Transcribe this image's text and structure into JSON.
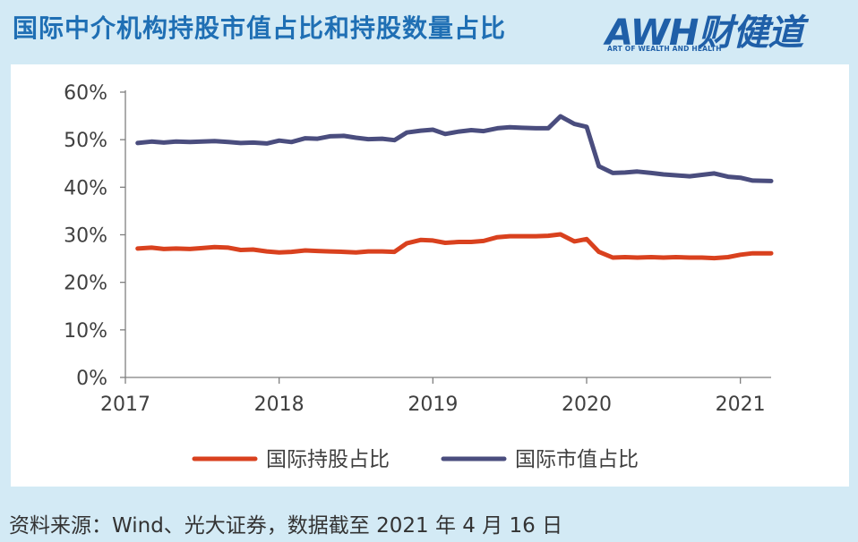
{
  "title": "国际中介机构持股市值占比和持股数量占比",
  "logo": {
    "text": "AWH财健道",
    "subtitle": "ART OF WEALTH AND HEALTH"
  },
  "source": "资料来源：Wind、光大证券，数据截至 2021 年 4 月 16 日",
  "chart_data": {
    "type": "line",
    "xlim": [
      2017,
      2021.2
    ],
    "ylim": [
      0,
      60
    ],
    "x_ticks": [
      2017,
      2018,
      2019,
      2020,
      2021
    ],
    "x_tick_labels": [
      "2017",
      "2018",
      "2019",
      "2020",
      "2021"
    ],
    "y_ticks": [
      0,
      10,
      20,
      30,
      40,
      50,
      60
    ],
    "y_tick_labels": [
      "0%",
      "10%",
      "20%",
      "30%",
      "40%",
      "50%",
      "60%"
    ],
    "legend_position": "bottom",
    "grid": false,
    "series": [
      {
        "name": "国际持股占比",
        "color": "#d9411e",
        "points": [
          [
            2017.08,
            27.1
          ],
          [
            2017.17,
            27.3
          ],
          [
            2017.25,
            27.0
          ],
          [
            2017.33,
            27.1
          ],
          [
            2017.42,
            27.0
          ],
          [
            2017.5,
            27.2
          ],
          [
            2017.58,
            27.4
          ],
          [
            2017.67,
            27.3
          ],
          [
            2017.75,
            26.8
          ],
          [
            2017.83,
            26.9
          ],
          [
            2017.92,
            26.5
          ],
          [
            2018.0,
            26.3
          ],
          [
            2018.08,
            26.4
          ],
          [
            2018.17,
            26.7
          ],
          [
            2018.25,
            26.6
          ],
          [
            2018.33,
            26.5
          ],
          [
            2018.42,
            26.4
          ],
          [
            2018.5,
            26.3
          ],
          [
            2018.58,
            26.5
          ],
          [
            2018.67,
            26.5
          ],
          [
            2018.75,
            26.4
          ],
          [
            2018.83,
            28.2
          ],
          [
            2018.92,
            28.9
          ],
          [
            2019.0,
            28.8
          ],
          [
            2019.08,
            28.3
          ],
          [
            2019.17,
            28.5
          ],
          [
            2019.25,
            28.5
          ],
          [
            2019.33,
            28.7
          ],
          [
            2019.42,
            29.5
          ],
          [
            2019.5,
            29.7
          ],
          [
            2019.58,
            29.7
          ],
          [
            2019.67,
            29.7
          ],
          [
            2019.75,
            29.8
          ],
          [
            2019.83,
            30.1
          ],
          [
            2019.92,
            28.6
          ],
          [
            2020.0,
            29.1
          ],
          [
            2020.08,
            26.4
          ],
          [
            2020.17,
            25.2
          ],
          [
            2020.25,
            25.3
          ],
          [
            2020.33,
            25.2
          ],
          [
            2020.42,
            25.3
          ],
          [
            2020.5,
            25.2
          ],
          [
            2020.58,
            25.3
          ],
          [
            2020.67,
            25.2
          ],
          [
            2020.75,
            25.2
          ],
          [
            2020.83,
            25.1
          ],
          [
            2020.92,
            25.3
          ],
          [
            2021.0,
            25.8
          ],
          [
            2021.08,
            26.1
          ],
          [
            2021.2,
            26.1
          ]
        ]
      },
      {
        "name": "国际市值占比",
        "color": "#4a4d7e",
        "points": [
          [
            2017.08,
            49.3
          ],
          [
            2017.17,
            49.6
          ],
          [
            2017.25,
            49.4
          ],
          [
            2017.33,
            49.6
          ],
          [
            2017.42,
            49.5
          ],
          [
            2017.5,
            49.6
          ],
          [
            2017.58,
            49.7
          ],
          [
            2017.67,
            49.5
          ],
          [
            2017.75,
            49.3
          ],
          [
            2017.83,
            49.4
          ],
          [
            2017.92,
            49.2
          ],
          [
            2018.0,
            49.8
          ],
          [
            2018.08,
            49.5
          ],
          [
            2018.17,
            50.3
          ],
          [
            2018.25,
            50.2
          ],
          [
            2018.33,
            50.7
          ],
          [
            2018.42,
            50.8
          ],
          [
            2018.5,
            50.4
          ],
          [
            2018.58,
            50.1
          ],
          [
            2018.67,
            50.2
          ],
          [
            2018.75,
            49.9
          ],
          [
            2018.83,
            51.5
          ],
          [
            2018.92,
            51.9
          ],
          [
            2019.0,
            52.1
          ],
          [
            2019.08,
            51.2
          ],
          [
            2019.17,
            51.7
          ],
          [
            2019.25,
            52.0
          ],
          [
            2019.33,
            51.8
          ],
          [
            2019.42,
            52.4
          ],
          [
            2019.5,
            52.6
          ],
          [
            2019.58,
            52.5
          ],
          [
            2019.67,
            52.4
          ],
          [
            2019.75,
            52.4
          ],
          [
            2019.83,
            54.9
          ],
          [
            2019.92,
            53.3
          ],
          [
            2020.0,
            52.7
          ],
          [
            2020.08,
            44.4
          ],
          [
            2020.17,
            43.0
          ],
          [
            2020.25,
            43.1
          ],
          [
            2020.33,
            43.3
          ],
          [
            2020.42,
            43.0
          ],
          [
            2020.5,
            42.7
          ],
          [
            2020.58,
            42.5
          ],
          [
            2020.67,
            42.3
          ],
          [
            2020.75,
            42.6
          ],
          [
            2020.83,
            42.9
          ],
          [
            2020.92,
            42.2
          ],
          [
            2021.0,
            42.0
          ],
          [
            2021.08,
            41.4
          ],
          [
            2021.2,
            41.3
          ]
        ]
      }
    ]
  }
}
